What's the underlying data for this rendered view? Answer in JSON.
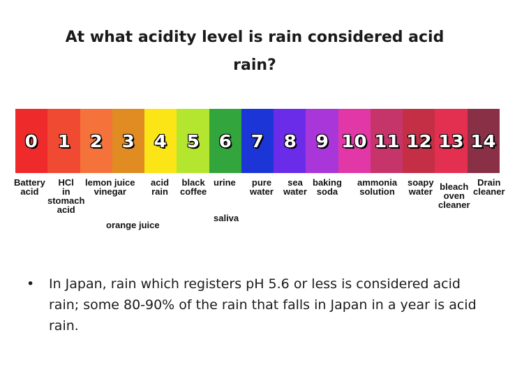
{
  "title": "At what acidity level is rain considered acid rain?",
  "scale": {
    "cells": [
      {
        "num": "0",
        "color": "#ee2a2a"
      },
      {
        "num": "1",
        "color": "#f04a32"
      },
      {
        "num": "2",
        "color": "#f5733a"
      },
      {
        "num": "3",
        "color": "#e08c22"
      },
      {
        "num": "4",
        "color": "#fbe516"
      },
      {
        "num": "5",
        "color": "#b4e630"
      },
      {
        "num": "6",
        "color": "#32a53c"
      },
      {
        "num": "7",
        "color": "#1c35d6"
      },
      {
        "num": "8",
        "color": "#6a2ce8"
      },
      {
        "num": "9",
        "color": "#a836d8"
      },
      {
        "num": "10",
        "color": "#e237a6"
      },
      {
        "num": "11",
        "color": "#c6356a"
      },
      {
        "num": "12",
        "color": "#c42f45"
      },
      {
        "num": "13",
        "color": "#e43050"
      },
      {
        "num": "14",
        "color": "#8a3046"
      }
    ],
    "labels": {
      "battery_acid": "Battery\nacid",
      "hcl": "HCl\nin\nstomach\nacid",
      "lemon_juice": "lemon juice\nvinegar",
      "orange_juice": "orange juice",
      "acid_rain": "acid\nrain",
      "black_coffee": "black\ncoffee",
      "urine": "urine",
      "saliva": "saliva",
      "pure_water": "pure\nwater",
      "sea_water": "sea\nwater",
      "baking_soda": "baking\nsoda",
      "ammonia": "ammonia\nsolution",
      "soapy_water": "soapy\nwater",
      "bleach": "bleach\noven\ncleaner",
      "drain_cleaner": "Drain\ncleaner"
    }
  },
  "bullets": [
    "In Japan, rain which registers pH 5.6 or less is considered acid rain; some 80-90% of the rain that falls in Japan in a year is acid rain."
  ]
}
